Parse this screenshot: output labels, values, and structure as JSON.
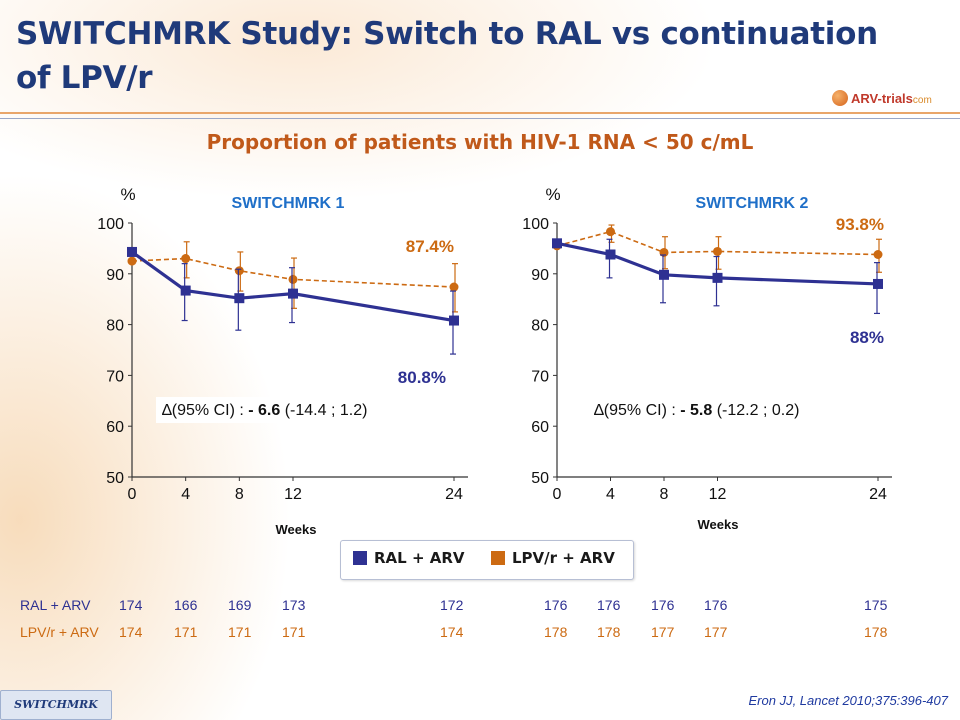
{
  "title": "SWITCHMRK Study: Switch to RAL vs continuation of LPV/r",
  "logo": {
    "brand": "ARV-trials",
    "suffix": "com"
  },
  "subtitle": "Proportion of patients with HIV-1 RNA < 50 c/mL",
  "legend": {
    "ral_label": "RAL + ARV",
    "lpv_label": "LPV/r + ARV"
  },
  "colors": {
    "ral": "#2e3192",
    "lpv": "#cc6a12",
    "title": "#1f3a7a"
  },
  "chart_data": [
    {
      "type": "line",
      "title": "SWITCHMRK 1",
      "ylabel": "%",
      "xlabel": "Weeks",
      "x": [
        0,
        4,
        8,
        12,
        24
      ],
      "xticks": [
        "0",
        "4",
        "8",
        "12",
        "24"
      ],
      "yticks": [
        "50",
        "60",
        "70",
        "80",
        "90",
        "100"
      ],
      "ylim": [
        50,
        100
      ],
      "series": [
        {
          "name": "RAL + ARV",
          "values": [
            94.3,
            86.7,
            85.2,
            86.1,
            80.8
          ],
          "ci_low": [
            94.3,
            80.8,
            78.9,
            80.4,
            74.2
          ],
          "ci_high": [
            94.3,
            92.0,
            90.9,
            91.2,
            86.6
          ]
        },
        {
          "name": "LPV/r + ARV",
          "values": [
            92.5,
            93.0,
            90.6,
            88.9,
            87.4
          ],
          "ci_low": [
            92.5,
            89.2,
            86.6,
            83.2,
            82.5
          ],
          "ci_high": [
            92.5,
            96.3,
            94.3,
            93.1,
            92.0
          ]
        }
      ],
      "end_labels": {
        "ral": "80.8%",
        "lpv": "87.4%"
      },
      "delta_prefix": "∆(95% CI) : ",
      "delta_value": "- 6.6",
      "delta_ci": " (-14.4 ; 1.2)"
    },
    {
      "type": "line",
      "title": "SWITCHMRK 2",
      "ylabel": "%",
      "xlabel": "Weeks",
      "x": [
        0,
        4,
        8,
        12,
        24
      ],
      "xticks": [
        "0",
        "4",
        "8",
        "12",
        "24"
      ],
      "yticks": [
        "50",
        "60",
        "70",
        "80",
        "90",
        "100"
      ],
      "ylim": [
        50,
        100
      ],
      "series": [
        {
          "name": "RAL + ARV",
          "values": [
            96.0,
            93.8,
            89.8,
            89.2,
            88.0
          ],
          "ci_low": [
            96.0,
            89.2,
            84.3,
            83.7,
            82.2
          ],
          "ci_high": [
            96.0,
            96.8,
            93.7,
            93.4,
            92.2
          ]
        },
        {
          "name": "LPV/r + ARV",
          "values": [
            95.5,
            98.3,
            94.2,
            94.4,
            93.8
          ],
          "ci_low": [
            95.5,
            96.2,
            91.0,
            90.9,
            90.3
          ],
          "ci_high": [
            95.5,
            99.6,
            97.3,
            97.3,
            96.8
          ]
        }
      ],
      "end_labels": {
        "ral": "88%",
        "lpv": "93.8%"
      },
      "delta_prefix": "∆(95% CI) : ",
      "delta_value": "- 5.8",
      "delta_ci": " (-12.2 ; 0.2)"
    }
  ],
  "patient_counts": {
    "ral_label": "RAL + ARV",
    "lpv_label": "LPV/r + ARV",
    "ral_s1": [
      "174",
      "166",
      "169",
      "173",
      "172"
    ],
    "lpv_s1": [
      "174",
      "171",
      "171",
      "171",
      "174"
    ],
    "ral_s2": [
      "176",
      "176",
      "176",
      "176",
      "175"
    ],
    "lpv_s2": [
      "178",
      "178",
      "177",
      "177",
      "178"
    ]
  },
  "footer_tag": "SWITCHMRK",
  "citation": "Eron JJ, Lancet 2010;375:396-407"
}
